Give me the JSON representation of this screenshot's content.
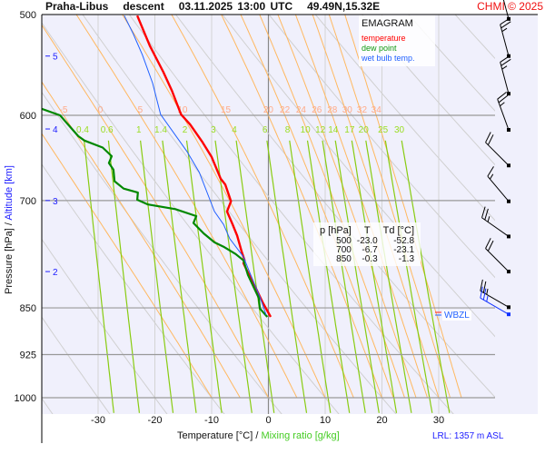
{
  "header": {
    "title": "Praha-Libus   descent   03.11.2025 13:00 UTC   49.49N,15.32E",
    "copyright": "CHMI © 2025"
  },
  "legend": {
    "title": "EMAGRAM",
    "temperature": "temperature",
    "dew_point": "dew point",
    "wet_bulb": "wet bulb temp."
  },
  "table": {
    "headers": [
      "p [hPa]",
      "T",
      "Td [°C]"
    ],
    "rows": [
      [
        "500",
        "-23.0",
        "-52.8"
      ],
      [
        "700",
        "-6.7",
        "-23.1"
      ],
      [
        "850",
        "-0.3",
        "-1.3"
      ]
    ]
  },
  "wbzl_label": "WBZL",
  "lrl_label": "LRL: 1357 m ASL",
  "axes": {
    "x_title": "Temperature [°C]",
    "x_sep": "/",
    "x_title2": "Mixing ratio [g/kg]",
    "y_title": "Pressure [hPa]",
    "y_sep": "/",
    "y_title2": "Altitude [km]"
  },
  "colors": {
    "temperature": "#ff0000",
    "dew_point": "#008800",
    "wet_bulb": "#2060ff",
    "moist_adiabat": "#ffb860",
    "mixing_ratio": "#88cc11",
    "dry_adiabat": "#d0d0d0",
    "background": "#f0f0fc"
  },
  "chart_data": {
    "type": "line",
    "title": "EMAGRAM",
    "xlabel": "Temperature [°C] / Mixing ratio [g/kg]",
    "ylabel": "Pressure [hPa] / Altitude [km]",
    "xlim": [
      -40,
      40
    ],
    "ylim": [
      500,
      1031
    ],
    "y_scale": "log",
    "x_ticks": [
      "-30",
      "-20",
      "-10",
      "0",
      "10",
      "20",
      "30"
    ],
    "x_tick_values": [
      -30,
      -20,
      -10,
      0,
      10,
      20,
      30
    ],
    "p_ticks": [
      "500",
      "600",
      "700",
      "850",
      "925",
      "1000"
    ],
    "p_tick_values": [
      500,
      600,
      700,
      850,
      925,
      1000
    ],
    "altitude_ticks": [
      {
        "label": "5",
        "p": 539
      },
      {
        "label": "4",
        "p": 615
      },
      {
        "label": "3",
        "p": 700
      },
      {
        "label": "2",
        "p": 796
      }
    ],
    "moist_adiabat_labels": [
      "-5",
      "0",
      "5",
      "10",
      "15",
      "20",
      "22",
      "24",
      "26",
      "28",
      "30",
      "32",
      "34"
    ],
    "moist_adiabat_values": [
      -5,
      0,
      5,
      10,
      15,
      20,
      22,
      24,
      26,
      28,
      30,
      32,
      34
    ],
    "mixing_ratio_labels": [
      "0.4",
      "0.6",
      "1",
      "1.4",
      "2",
      "3",
      "4",
      "6",
      "8",
      "10",
      "12",
      "14",
      "17",
      "20",
      "25",
      "30"
    ],
    "mixing_ratio_values": [
      0.4,
      0.6,
      1,
      1.4,
      2,
      3,
      4,
      6,
      8,
      10,
      12,
      14,
      17,
      20,
      25,
      30
    ],
    "series": [
      {
        "name": "temperature",
        "p": [
          501,
          529,
          555,
          574,
          599,
          610,
          630,
          647,
          673,
          680,
          701,
          714,
          731,
          746,
          768,
          780,
          784,
          806,
          824,
          842,
          864
        ],
        "t": [
          -23.1,
          -20.9,
          -18.5,
          -17.0,
          -15.4,
          -13.8,
          -11.6,
          -10.0,
          -8.4,
          -7.6,
          -6.6,
          -7.3,
          -6.3,
          -5.5,
          -4.7,
          -4.2,
          -4.4,
          -3.1,
          -2.0,
          -1.0,
          0.4
        ]
      },
      {
        "name": "dew point",
        "p": [
          593,
          600,
          623,
          628,
          636,
          646,
          654,
          662,
          676,
          685,
          690,
          699,
          705,
          711,
          720,
          729,
          743,
          755,
          761,
          771,
          780,
          801,
          835,
          851,
          864
        ],
        "t": [
          -39.9,
          -36.7,
          -33.5,
          -32.4,
          -29.2,
          -27.6,
          -28.1,
          -27.3,
          -27.1,
          -25.5,
          -23.0,
          -23.1,
          -21.2,
          -16.4,
          -12.7,
          -13.2,
          -11.4,
          -9.5,
          -7.9,
          -5.8,
          -4.4,
          -3.6,
          -1.7,
          -1.5,
          -0.2
        ]
      },
      {
        "name": "wet bulb temp.",
        "p": [
          501,
          518,
          538,
          566,
          599,
          641,
          665,
          699,
          714,
          731,
          750,
          775,
          801,
          833,
          861
        ],
        "t": [
          -25.4,
          -23.8,
          -22.2,
          -20.4,
          -19.0,
          -14.3,
          -12.2,
          -10.3,
          -9.5,
          -7.9,
          -6.8,
          -4.4,
          -3.1,
          -1.5,
          -0.4
        ]
      }
    ],
    "wind": [
      {
        "p": 504,
        "dir": 345,
        "kt": 25
      },
      {
        "p": 539,
        "dir": 345,
        "kt": 25
      },
      {
        "p": 577,
        "dir": 345,
        "kt": 25
      },
      {
        "p": 616,
        "dir": 340,
        "kt": 25
      },
      {
        "p": 657,
        "dir": 315,
        "kt": 20
      },
      {
        "p": 701,
        "dir": 320,
        "kt": 15
      },
      {
        "p": 747,
        "dir": 305,
        "kt": 25
      },
      {
        "p": 796,
        "dir": 315,
        "kt": 20
      },
      {
        "p": 849,
        "dir": 300,
        "kt": 25
      }
    ],
    "wbzl_wind": {
      "p": 860,
      "dir": 300,
      "kt": 25
    },
    "grid": true,
    "legend_position": "top-right"
  }
}
